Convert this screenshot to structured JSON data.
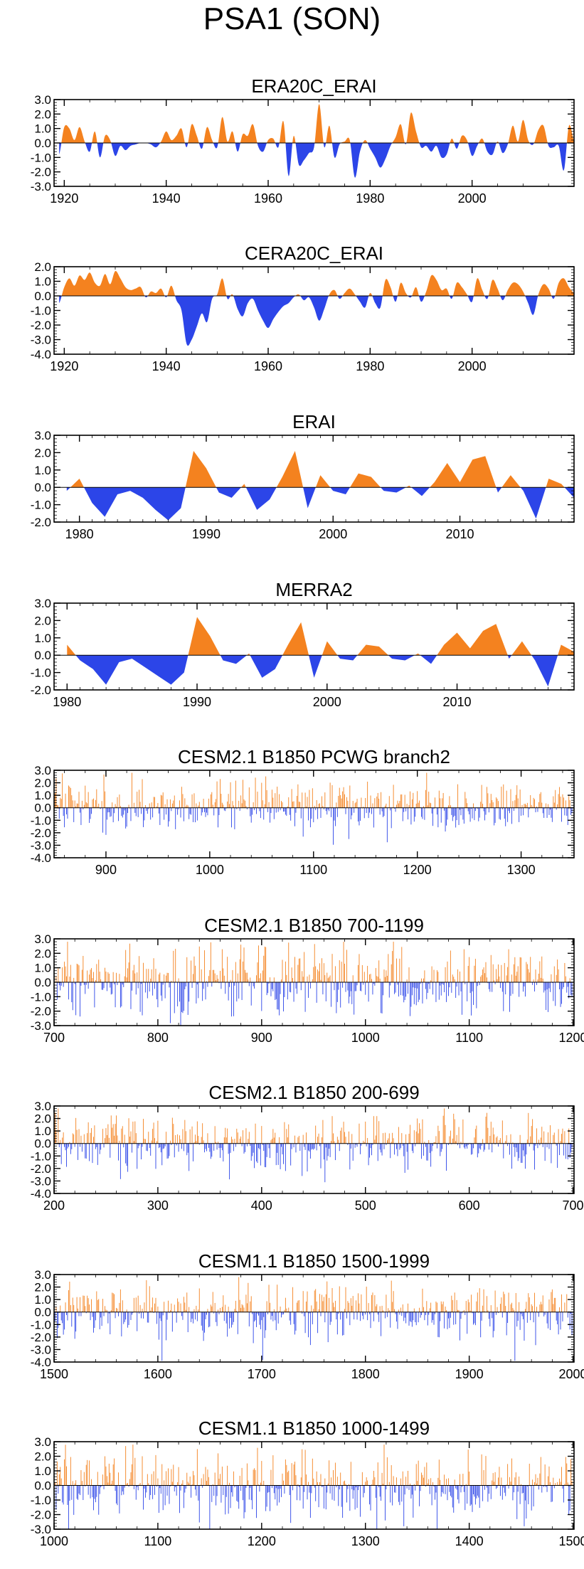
{
  "figure_title": "PSA1 (SON)",
  "colors": {
    "positive": "#f4821f",
    "negative": "#2c45e8",
    "zero_line": "#000000",
    "axis": "#000000"
  },
  "chart_data": [
    {
      "type": "area",
      "title": "ERA20C_ERAI",
      "mode": "smooth",
      "xlim": [
        1918,
        2020
      ],
      "ylim": [
        -3.0,
        3.0
      ],
      "yticks": [
        3.0,
        2.0,
        1.0,
        0.0,
        -1.0,
        -2.0,
        -3.0
      ],
      "ytick_labels": [
        "3.0",
        "2.0",
        "1.0",
        "0.0",
        "-1.0",
        "-2.0",
        "-3.0"
      ],
      "xticks": [
        1920,
        1940,
        1960,
        1980,
        2000
      ],
      "xtick_labels": [
        "1920",
        "1940",
        "1960",
        "1980",
        "2000"
      ],
      "x_start": 1919,
      "values": [
        -0.8,
        1.1,
        1.0,
        0.2,
        1.1,
        0.1,
        -0.6,
        0.8,
        -1.0,
        0.5,
        0.2,
        -0.9,
        -0.2,
        -0.5,
        -0.2,
        -0.1,
        0,
        0,
        -0.1,
        -0.3,
        0.1,
        0.8,
        0.2,
        0.5,
        1.0,
        -0.3,
        1.3,
        0.5,
        -0.4,
        1.1,
        0.2,
        -0.3,
        1.8,
        0.1,
        0.8,
        -0.6,
        0.6,
        0.5,
        1.3,
        -0.2,
        -0.6,
        0.2,
        0.3,
        -0.3,
        1.5,
        -2.3,
        0.5,
        -1.5,
        -1.2,
        -0.7,
        -0.3,
        2.7,
        -0.3,
        1.2,
        -1.0,
        -0.1,
        0.1,
        0.2,
        -2.4,
        -0.6,
        0.2,
        -0.4,
        -1.0,
        -1.7,
        -1.1,
        -0.2,
        0.4,
        1.3,
        -0.1,
        2.1,
        0.8,
        -0.3,
        -0.2,
        -0.6,
        -0.2,
        -1.0,
        -0.8,
        0.3,
        -0.4,
        0.5,
        0.2,
        -0.9,
        -0.2,
        0.3,
        -0.6,
        -0.8,
        0.1,
        -0.7,
        -0.1,
        1.2,
        0.1,
        1.6,
        0.2,
        -0.1,
        0.9,
        1.2,
        -0.2,
        -0.3,
        -0.2,
        -1.9,
        1.2,
        0.1,
        -0.2
      ]
    },
    {
      "type": "area",
      "title": "CERA20C_ERAI",
      "mode": "smooth",
      "xlim": [
        1918,
        2020
      ],
      "ylim": [
        -4.0,
        2.0
      ],
      "yticks": [
        2.0,
        1.0,
        0.0,
        -1.0,
        -2.0,
        -3.0,
        -4.0
      ],
      "ytick_labels": [
        "2.0",
        "1.0",
        "0.0",
        "-1.0",
        "-2.0",
        "-3.0",
        "-4.0"
      ],
      "xticks": [
        1920,
        1940,
        1960,
        1980,
        2000
      ],
      "xtick_labels": [
        "1920",
        "1940",
        "1960",
        "1980",
        "2000"
      ],
      "x_start": 1919,
      "values": [
        -0.5,
        0.6,
        1.2,
        0.7,
        1.4,
        1.1,
        1.6,
        0.9,
        0.7,
        1.5,
        0.8,
        1.7,
        1.2,
        0.6,
        0.4,
        0.5,
        0.6,
        -0.1,
        0.3,
        0.2,
        0.5,
        -0.1,
        0.7,
        -0.3,
        -1.0,
        -3.3,
        -3.0,
        -2.1,
        -1.2,
        -1.8,
        -0.2,
        0.1,
        1.2,
        -0.2,
        0.1,
        -0.9,
        -1.4,
        -0.5,
        -0.2,
        -1.0,
        -1.7,
        -2.2,
        -1.6,
        -1.1,
        -0.7,
        -0.5,
        -0.1,
        0.1,
        -0.3,
        -0.1,
        -0.8,
        -1.7,
        -0.9,
        0.1,
        0.4,
        -0.2,
        0.2,
        0.5,
        0.1,
        -0.4,
        -0.8,
        0.2,
        -0.5,
        -0.8,
        1.1,
        0.6,
        -0.4,
        0.9,
        0.2,
        -0.1,
        0.6,
        -0.4,
        0.3,
        1.4,
        1.1,
        0.4,
        0.5,
        -0.2,
        0.9,
        0.6,
        0.1,
        -0.4,
        1.2,
        0.4,
        -0.2,
        1.1,
        0.5,
        -0.3,
        0.4,
        0.9,
        0.8,
        0.3,
        -0.5,
        -1.3,
        0.1,
        0.8,
        0.5,
        -0.2,
        0.9,
        1.2,
        0.6,
        0.2,
        0.1
      ]
    },
    {
      "type": "area",
      "title": "ERAI",
      "mode": "linear",
      "xlim": [
        1978,
        2019
      ],
      "ylim": [
        -2.0,
        3.0
      ],
      "yticks": [
        3.0,
        2.0,
        1.0,
        0.0,
        -1.0,
        -2.0
      ],
      "ytick_labels": [
        "3.0",
        "2.0",
        "1.0",
        "0.0",
        "-1.0",
        "-2.0"
      ],
      "xticks": [
        1980,
        1990,
        2000,
        2010
      ],
      "xtick_labels": [
        "1980",
        "1990",
        "2000",
        "2010"
      ],
      "x_start": 1979,
      "values": [
        -0.2,
        0.5,
        -0.9,
        -1.7,
        -0.4,
        -0.2,
        -0.6,
        -1.3,
        -1.9,
        -1.2,
        2.1,
        1.1,
        -0.3,
        -0.6,
        0.2,
        -1.3,
        -0.7,
        0.6,
        2.1,
        -1.2,
        0.7,
        -0.2,
        -0.4,
        0.8,
        0.6,
        -0.2,
        -0.3,
        0.1,
        -0.5,
        0.3,
        1.4,
        0.3,
        1.6,
        1.8,
        -0.3,
        0.7,
        -0.2,
        -1.8,
        0.5,
        0.2,
        -0.6
      ]
    },
    {
      "type": "area",
      "title": "MERRA2",
      "mode": "linear",
      "xlim": [
        1979,
        2019
      ],
      "ylim": [
        -2.0,
        3.0
      ],
      "yticks": [
        3.0,
        2.0,
        1.0,
        0.0,
        -1.0,
        -2.0
      ],
      "ytick_labels": [
        "3.0",
        "2.0",
        "1.0",
        "0.0",
        "-1.0",
        "-2.0"
      ],
      "xticks": [
        1980,
        1990,
        2000,
        2010
      ],
      "xtick_labels": [
        "1980",
        "1990",
        "2000",
        "2010"
      ],
      "x_start": 1980,
      "values": [
        0.6,
        -0.3,
        -0.8,
        -1.7,
        -0.4,
        -0.2,
        -0.7,
        -1.2,
        -1.7,
        -1.0,
        2.2,
        1.1,
        -0.3,
        -0.5,
        0.1,
        -1.3,
        -0.8,
        0.6,
        1.9,
        -1.3,
        0.8,
        -0.2,
        -0.3,
        0.6,
        0.5,
        -0.2,
        -0.3,
        0.1,
        -0.5,
        0.6,
        1.3,
        0.4,
        1.4,
        1.8,
        -0.2,
        0.8,
        -0.3,
        -1.8,
        0.6,
        0.2,
        -0.5
      ]
    },
    {
      "type": "bar",
      "title": "CESM2.1 B1850 PCWG branch2",
      "mode": "bars",
      "xlim": [
        850,
        1351
      ],
      "ylim": [
        -4.0,
        3.0
      ],
      "yticks": [
        3.0,
        2.0,
        1.0,
        0.0,
        -1.0,
        -2.0,
        -3.0,
        -4.0
      ],
      "ytick_labels": [
        "3.0",
        "2.0",
        "1.0",
        "0.0",
        "-1.0",
        "-2.0",
        "-3.0",
        "-4.0"
      ],
      "xticks": [
        900,
        1000,
        1100,
        1200,
        1300
      ],
      "xtick_labels": [
        "900",
        "1000",
        "1100",
        "1200",
        "1300"
      ],
      "x_start": 850,
      "n_points": 500,
      "seed": 11,
      "amp": [
        1.25,
        1.15
      ],
      "values": []
    },
    {
      "type": "bar",
      "title": "CESM2.1 B1850 700-1199",
      "mode": "bars",
      "xlim": [
        700,
        1201
      ],
      "ylim": [
        -3.0,
        3.0
      ],
      "yticks": [
        3.0,
        2.0,
        1.0,
        0.0,
        -1.0,
        -2.0,
        -3.0
      ],
      "ytick_labels": [
        "3.0",
        "2.0",
        "1.0",
        "0.0",
        "-1.0",
        "-2.0",
        "-3.0"
      ],
      "xticks": [
        700,
        800,
        900,
        1000,
        1100,
        1200
      ],
      "xtick_labels": [
        "700",
        "800",
        "900",
        "1000",
        "1100",
        "1200"
      ],
      "x_start": 700,
      "n_points": 500,
      "seed": 23,
      "amp": [
        1.4,
        1.35
      ],
      "values": []
    },
    {
      "type": "bar",
      "title": "CESM2.1 B1850 200-699",
      "mode": "bars",
      "xlim": [
        200,
        701
      ],
      "ylim": [
        -4.0,
        3.0
      ],
      "yticks": [
        3.0,
        2.0,
        1.0,
        0.0,
        -1.0,
        -2.0,
        -3.0,
        -4.0
      ],
      "ytick_labels": [
        "3.0",
        "2.0",
        "1.0",
        "0.0",
        "-1.0",
        "-2.0",
        "-3.0",
        "-4.0"
      ],
      "xticks": [
        200,
        300,
        400,
        500,
        600,
        700
      ],
      "xtick_labels": [
        "200",
        "300",
        "400",
        "500",
        "600",
        "700"
      ],
      "x_start": 200,
      "n_points": 500,
      "seed": 37,
      "amp": [
        1.3,
        1.25
      ],
      "values": []
    },
    {
      "type": "bar",
      "title": "CESM1.1 B1850 1500-1999",
      "mode": "bars",
      "xlim": [
        1500,
        2001
      ],
      "ylim": [
        -4.0,
        3.0
      ],
      "yticks": [
        3.0,
        2.0,
        1.0,
        0.0,
        -1.0,
        -2.0,
        -3.0,
        -4.0
      ],
      "ytick_labels": [
        "3.0",
        "2.0",
        "1.0",
        "0.0",
        "-1.0",
        "-2.0",
        "-3.0",
        "-4.0"
      ],
      "xticks": [
        1500,
        1600,
        1700,
        1800,
        1900,
        2000
      ],
      "xtick_labels": [
        "1500",
        "1600",
        "1700",
        "1800",
        "1900",
        "2000"
      ],
      "x_start": 1500,
      "n_points": 500,
      "seed": 41,
      "amp": [
        1.3,
        1.35
      ],
      "values": []
    },
    {
      "type": "bar",
      "title": "CESM1.1 B1850 1000-1499",
      "mode": "bars",
      "xlim": [
        1000,
        1501
      ],
      "ylim": [
        -3.0,
        3.0
      ],
      "yticks": [
        3.0,
        2.0,
        1.0,
        0.0,
        -1.0,
        -2.0,
        -3.0
      ],
      "ytick_labels": [
        "3.0",
        "2.0",
        "1.0",
        "0.0",
        "-1.0",
        "-2.0",
        "-3.0"
      ],
      "xticks": [
        1000,
        1100,
        1200,
        1300,
        1400,
        1500
      ],
      "xtick_labels": [
        "1000",
        "1100",
        "1200",
        "1300",
        "1400",
        "1500"
      ],
      "x_start": 1000,
      "n_points": 500,
      "seed": 53,
      "amp": [
        1.35,
        1.3
      ],
      "values": []
    }
  ]
}
